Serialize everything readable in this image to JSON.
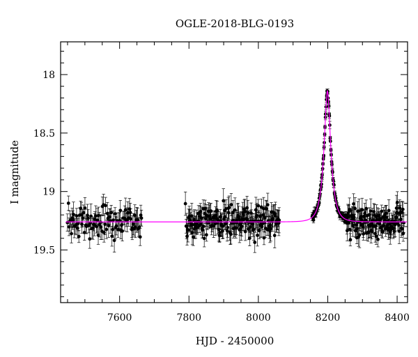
{
  "chart_data": {
    "type": "scatter",
    "title": "OGLE-2018-BLG-0193",
    "xlabel": "HJD - 2450000",
    "ylabel": "I magnitude",
    "xlim": [
      7430,
      8430
    ],
    "ylim": [
      19.95,
      17.72
    ],
    "y_inverted": true,
    "x_ticks": [
      7600,
      7800,
      8000,
      8200,
      8400
    ],
    "y_ticks": [
      "18",
      "18.5",
      "19",
      "19.5"
    ],
    "grid": false,
    "colors": {
      "data": "#000000",
      "model": "#ff00ff",
      "axes": "#000000"
    },
    "model_params": {
      "baseline": 19.26,
      "peak_time": 8199,
      "peak_mag": 18.14,
      "timescale": 19
    },
    "series": [
      {
        "kind": "data-with-errorbars",
        "segments": [
          {
            "x_range": [
              7450,
              7665
            ],
            "step": 2.2,
            "mag_scatter": 0.07,
            "err": [
              0.05,
              0.11
            ]
          },
          {
            "x_range": [
              7790,
              8060
            ],
            "step": 1.5,
            "mag_scatter": 0.07,
            "err": [
              0.05,
              0.11
            ]
          },
          {
            "x_range": [
              8155,
              8255
            ],
            "step": 1.0,
            "mag_scatter": 0.015,
            "err": [
              0.01,
              0.04
            ]
          },
          {
            "x_range": [
              8255,
              8420
            ],
            "step": 1.3,
            "mag_scatter": 0.07,
            "err": [
              0.05,
              0.11
            ]
          }
        ]
      },
      {
        "kind": "model"
      }
    ]
  }
}
